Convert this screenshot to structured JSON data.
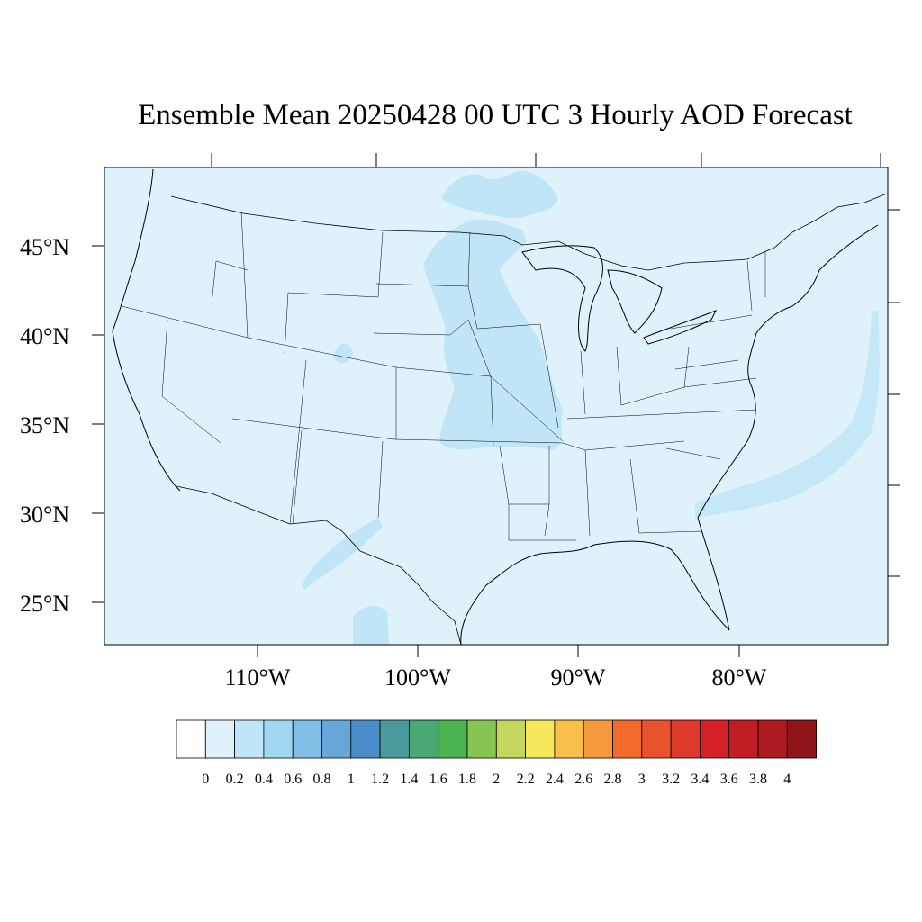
{
  "title": "Ensemble Mean 20250428 00 UTC 3 Hourly AOD Forecast",
  "map": {
    "lat_labels": [
      "45°N",
      "40°N",
      "35°N",
      "30°N",
      "25°N"
    ],
    "lon_labels": [
      "110°W",
      "100°W",
      "90°W",
      "80°W"
    ],
    "ocean_fill": "#dff2fb",
    "plume_fill": "#bfe5f7",
    "plume_fill_2": "#c4e8f8"
  },
  "colorbar": {
    "levels": [
      "0",
      "0.2",
      "0.4",
      "0.6",
      "0.8",
      "1",
      "1.2",
      "1.4",
      "1.6",
      "1.8",
      "2",
      "2.2",
      "2.4",
      "2.6",
      "2.8",
      "3",
      "3.2",
      "3.4",
      "3.6",
      "3.8",
      "4"
    ],
    "colors": [
      "#ffffff",
      "#dff2fb",
      "#bfe5f7",
      "#a0d8f3",
      "#82bfe6",
      "#66a6da",
      "#4a8cc9",
      "#4b9a9b",
      "#4aa876",
      "#4ab452",
      "#86c54f",
      "#c4d65b",
      "#f6e75b",
      "#f8bf4a",
      "#f49a3c",
      "#f26b2d",
      "#e8532e",
      "#de3a2c",
      "#d42128",
      "#c01d25",
      "#ac1a22",
      "#8f1519"
    ]
  }
}
